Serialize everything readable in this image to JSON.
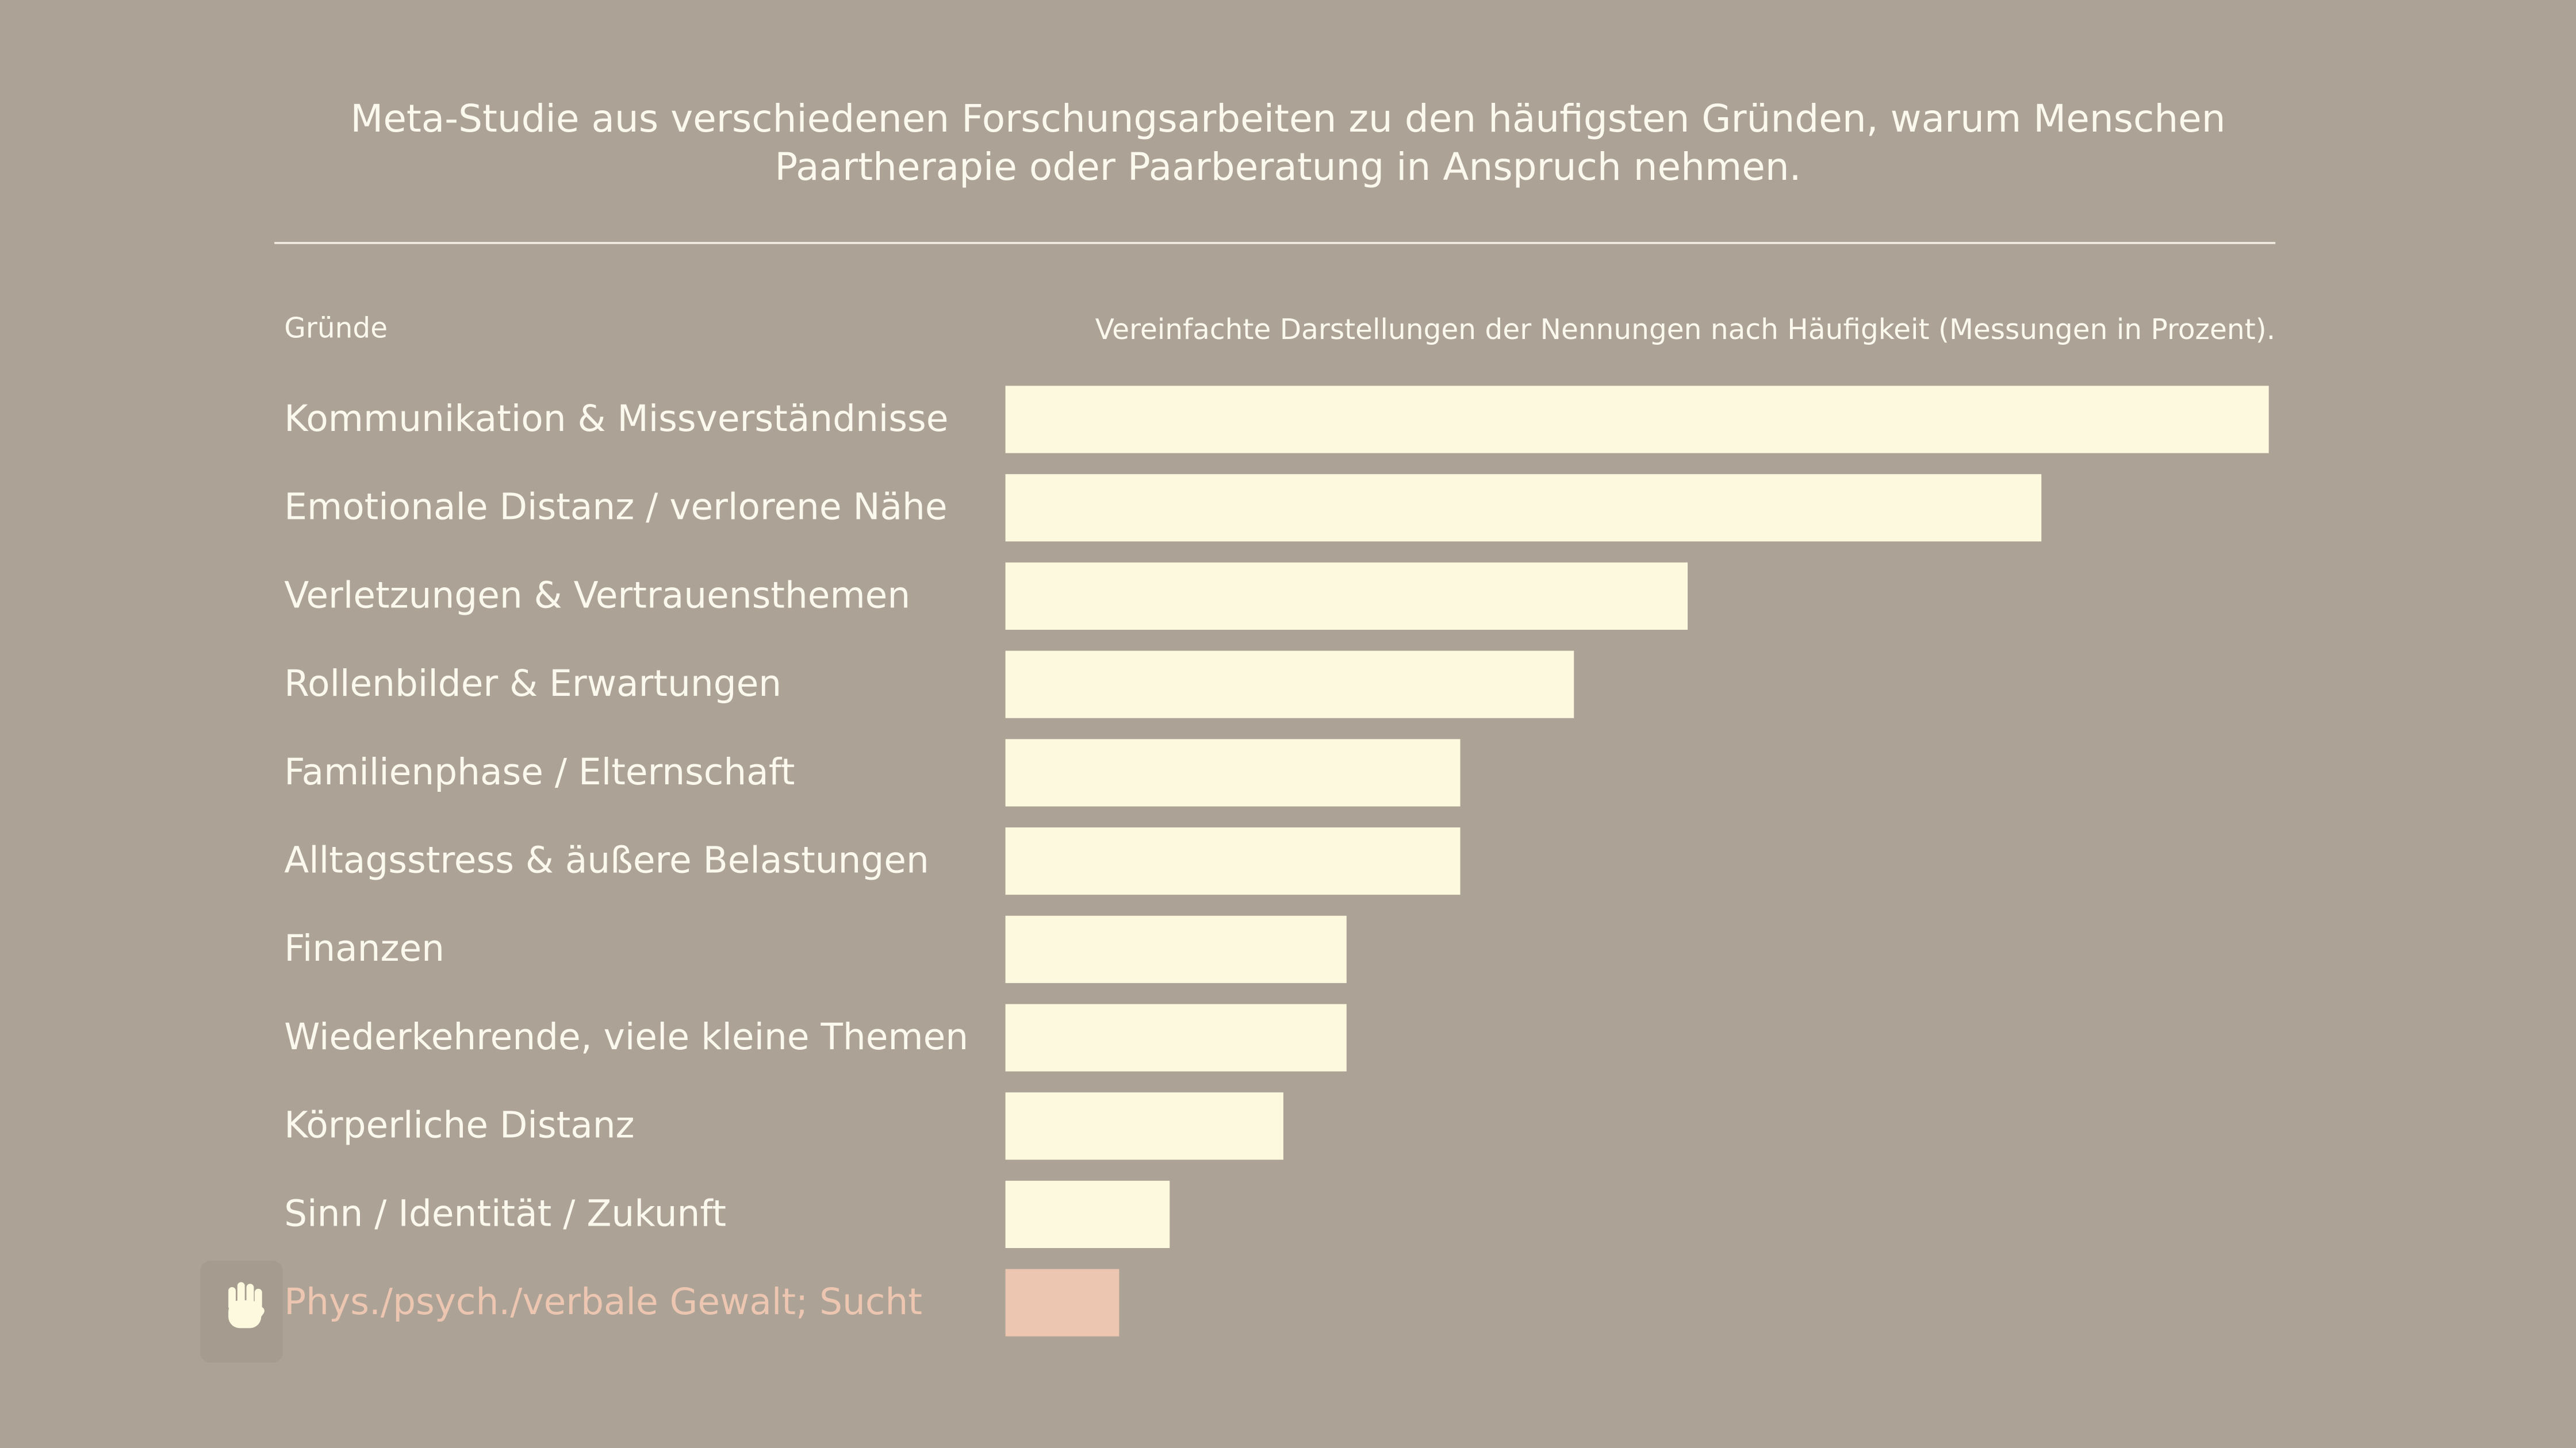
{
  "chart_data": {
    "type": "hbar",
    "title": "Meta-Studie aus verschiedenen Forschungsarbeiten zu den häufigsten Gründen, warum Menschen Paartherapie oder Paarberatung in Anspruch nehmen.",
    "category_header": "Gründe",
    "value_header": "Vereinfachte Darstellungen der Nennungen nach Häufigkeit (Messungen in Prozent).",
    "categories": [
      "Kommunikation & Missverständnisse",
      "Emotionale Distanz / verlorene Nähe",
      "Verletzungen & Vertrauensthemen",
      "Rollenbilder & Erwartungen",
      "Familienphase / Elternschaft",
      "Alltagsstress & äußere Belastungen",
      "Finanzen",
      "Wiederkehrende, viele kleine Themen",
      "Körperliche Distanz",
      "Sinn / Identität / Zukunft",
      "Phys./psych./verbale Gewalt; Sucht"
    ],
    "values": [
      100,
      82,
      54,
      45,
      36,
      36,
      27,
      27,
      22,
      13,
      9
    ],
    "color": "#fdf9de",
    "colors": [
      "#fdf9de",
      "#fdf9de",
      "#fdf9de",
      "#fdf9de",
      "#fdf9de",
      "#fdf9de",
      "#fdf9de",
      "#fdf9de",
      "#fdf9de",
      "#fdf9de",
      "#ecc6b0"
    ],
    "xlim": [
      0,
      100
    ]
  }
}
